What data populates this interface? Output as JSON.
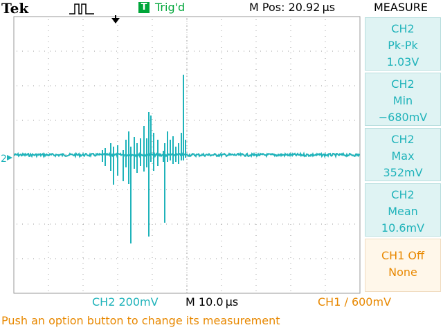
{
  "header": {
    "brand": "Tek",
    "trigger_badge": "T",
    "trigger_status": "Trig'd",
    "position": "M Pos: 20.92 µs",
    "menu_title": "MEASURE"
  },
  "measurements": [
    {
      "channel": "CH2",
      "type": "Pk-Pk",
      "value": "1.03V"
    },
    {
      "channel": "CH2",
      "type": "Min",
      "value": "−680mV"
    },
    {
      "channel": "CH2",
      "type": "Max",
      "value": "352mV"
    },
    {
      "channel": "CH2",
      "type": "Mean",
      "value": "10.6mV"
    },
    {
      "channel": "CH1 Off",
      "type": "None",
      "value": ""
    }
  ],
  "footer": {
    "ch2_scale": "CH2  200mV",
    "timebase": "M 10.0 µs",
    "trigger": "CH1 ∕ 600mV",
    "message": "Push an option button to change its measurement"
  },
  "graticule": {
    "h_div": 10,
    "v_div": 8
  },
  "ch2_marker": "2",
  "colors": {
    "trace": "#1fb3ba",
    "accent": "#e88800",
    "trigger_green": "#00a63a",
    "grid": "#9a9a9a"
  },
  "icons": {
    "run_state": "pulse-icon",
    "trigger_position": "trigger-arrow-icon",
    "ch2_ground": "ground-marker-icon"
  }
}
